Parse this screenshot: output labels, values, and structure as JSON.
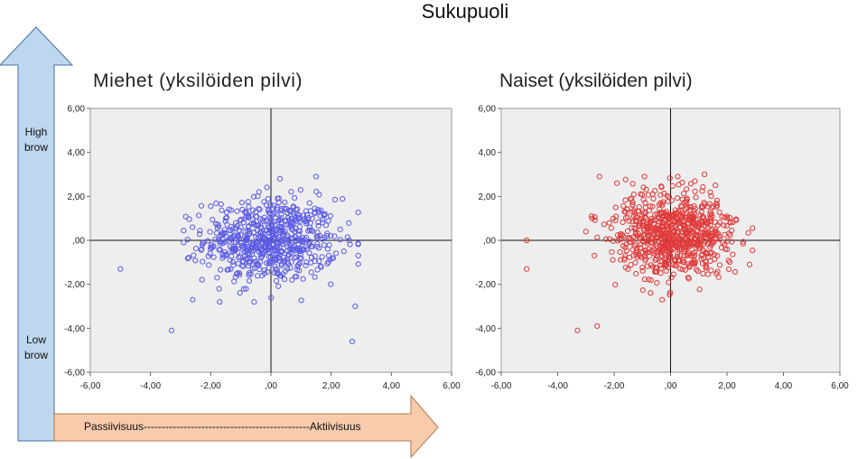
{
  "header": {
    "title": "Sukupuoli"
  },
  "left_panel": {
    "title": "Miehet (yksilöiden pilvi)"
  },
  "right_panel": {
    "title": "Naiset (yksilöiden pilvi)"
  },
  "vertical_arrow": {
    "top_label": "High brow",
    "bottom_label": "Low brow",
    "color": "#bdd7ee"
  },
  "horizontal_arrow": {
    "label": "Passiivisuus----------------------------------------------Aktiivisuus",
    "color": "#f8cbad"
  },
  "colors": {
    "men_points": "#5b5be6",
    "women_points": "#e03a3a",
    "plot_bg": "#eeeeee"
  },
  "chart_data": [
    {
      "type": "scatter",
      "title": "Miehet (yksilöiden pilvi)",
      "xlabel": "",
      "ylabel": "",
      "xlim": [
        -6,
        6
      ],
      "ylim": [
        -6,
        6
      ],
      "xticks": [
        "-6,00",
        "-4,00",
        "-2,00",
        ",00",
        "2,00",
        "4,00",
        "6,00"
      ],
      "yticks": [
        "6,00",
        "4,00",
        "2,00",
        ",00",
        "-2,00",
        "-4,00",
        "-6,00"
      ],
      "grid": false,
      "reference_lines": {
        "x": 0,
        "y": 0
      },
      "point_count": 650,
      "cluster": {
        "center": [
          0.0,
          0.0
        ],
        "spread": [
          1.1,
          0.95
        ]
      },
      "outliers": [
        [
          -5.0,
          -1.3
        ],
        [
          -3.3,
          -4.1
        ],
        [
          2.7,
          -4.6
        ],
        [
          1.5,
          2.9
        ],
        [
          0.3,
          2.8
        ],
        [
          -2.6,
          -2.7
        ],
        [
          -2.9,
          -0.1
        ],
        [
          2.8,
          -3.0
        ],
        [
          -0.4,
          2.2
        ],
        [
          2.6,
          0.0
        ]
      ]
    },
    {
      "type": "scatter",
      "title": "Naiset (yksilöiden pilvi)",
      "xlabel": "",
      "ylabel": "",
      "xlim": [
        -6,
        6
      ],
      "ylim": [
        -6,
        6
      ],
      "xticks": [
        "-6,00",
        "-4,00",
        "-2,00",
        ",00",
        "2,00",
        "4,00",
        "6,00"
      ],
      "yticks": [
        "6,00",
        "4,00",
        "2,00",
        ",00",
        "-2,00",
        "-4,00",
        "-6,00"
      ],
      "grid": false,
      "reference_lines": {
        "x": 0,
        "y": 0
      },
      "point_count": 750,
      "cluster": {
        "center": [
          0.1,
          0.3
        ],
        "spread": [
          1.05,
          0.95
        ]
      },
      "outliers": [
        [
          -5.1,
          0.0
        ],
        [
          -5.1,
          -1.3
        ],
        [
          -3.3,
          -4.1
        ],
        [
          -2.6,
          -3.9
        ],
        [
          -0.3,
          -2.7
        ],
        [
          2.8,
          -1.1
        ],
        [
          -3.0,
          0.4
        ],
        [
          1.2,
          3.0
        ],
        [
          -1.9,
          2.6
        ],
        [
          -2.8,
          1.1
        ]
      ]
    }
  ]
}
